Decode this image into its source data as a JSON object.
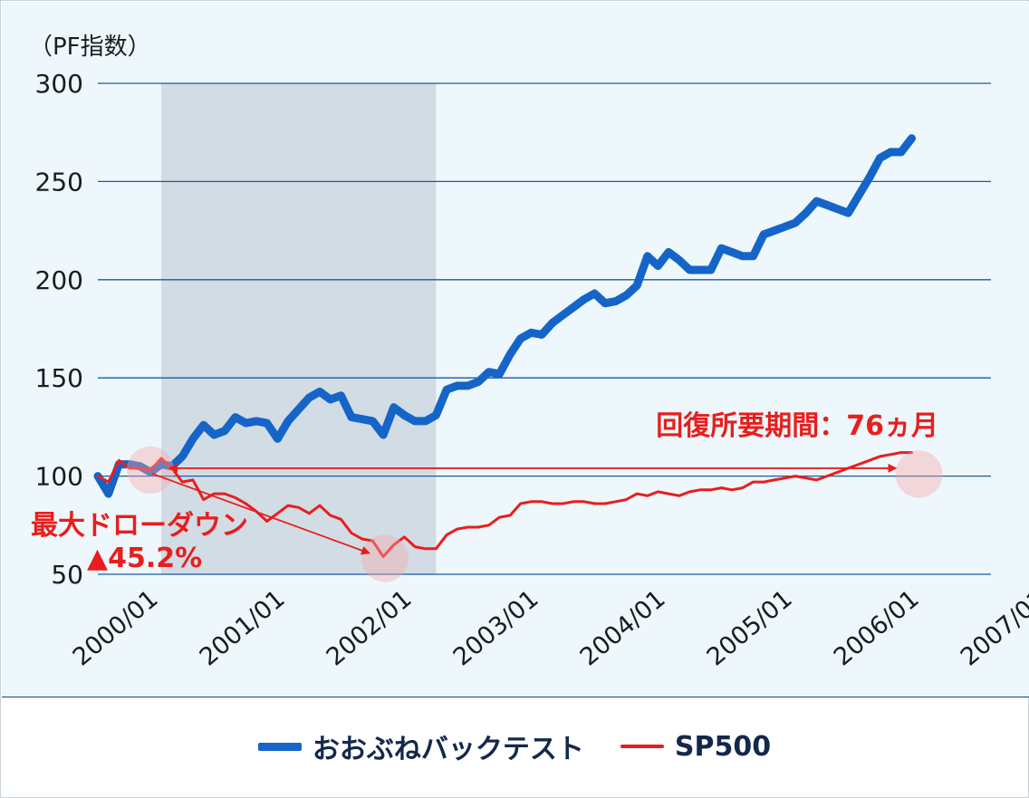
{
  "chart_data": {
    "type": "line",
    "ylabel": "（PF指数）",
    "ylim": [
      50,
      300
    ],
    "yticks": [
      "300",
      "250",
      "200",
      "150",
      "100",
      "50"
    ],
    "xticks": [
      "2000/01",
      "2001/01",
      "2002/01",
      "2003/01",
      "2004/01",
      "2005/01",
      "2006/01",
      "2007/01"
    ],
    "grid": "horizontal",
    "legend_position": "bottom",
    "shaded_period": {
      "start": "2000/07",
      "end": "2002/09"
    },
    "series": [
      {
        "name": "おおぶねバックテスト",
        "color": "#1565c8",
        "points": [
          [
            "2000/01",
            100
          ],
          [
            "2000/02",
            91
          ],
          [
            "2000/03",
            106
          ],
          [
            "2000/04",
            106
          ],
          [
            "2000/05",
            105
          ],
          [
            "2000/06",
            102
          ],
          [
            "2000/07",
            106
          ],
          [
            "2000/08",
            105
          ],
          [
            "2000/09",
            110
          ],
          [
            "2000/10",
            119
          ],
          [
            "2000/11",
            126
          ],
          [
            "2000/12",
            121
          ],
          [
            "2001/01",
            123
          ],
          [
            "2001/02",
            130
          ],
          [
            "2001/03",
            127
          ],
          [
            "2001/04",
            128
          ],
          [
            "2001/05",
            127
          ],
          [
            "2001/06",
            119
          ],
          [
            "2001/07",
            128
          ],
          [
            "2001/08",
            134
          ],
          [
            "2001/09",
            140
          ],
          [
            "2001/10",
            143
          ],
          [
            "2001/11",
            139
          ],
          [
            "2001/12",
            141
          ],
          [
            "2002/01",
            130
          ],
          [
            "2002/02",
            129
          ],
          [
            "2002/03",
            128
          ],
          [
            "2002/04",
            121
          ],
          [
            "2002/05",
            135
          ],
          [
            "2002/06",
            131
          ],
          [
            "2002/07",
            128
          ],
          [
            "2002/08",
            128
          ],
          [
            "2002/09",
            131
          ],
          [
            "2002/10",
            144
          ],
          [
            "2002/11",
            146
          ],
          [
            "2002/12",
            146
          ],
          [
            "2003/01",
            148
          ],
          [
            "2003/02",
            153
          ],
          [
            "2003/03",
            152
          ],
          [
            "2003/04",
            162
          ],
          [
            "2003/05",
            170
          ],
          [
            "2003/06",
            173
          ],
          [
            "2003/07",
            172
          ],
          [
            "2003/08",
            178
          ],
          [
            "2003/09",
            182
          ],
          [
            "2003/10",
            186
          ],
          [
            "2003/11",
            190
          ],
          [
            "2003/12",
            193
          ],
          [
            "2004/01",
            188
          ],
          [
            "2004/02",
            189
          ],
          [
            "2004/03",
            192
          ],
          [
            "2004/04",
            197
          ],
          [
            "2004/05",
            212
          ],
          [
            "2004/06",
            207
          ],
          [
            "2004/07",
            214
          ],
          [
            "2004/08",
            210
          ],
          [
            "2004/09",
            205
          ],
          [
            "2004/10",
            205
          ],
          [
            "2004/11",
            205
          ],
          [
            "2004/12",
            216
          ],
          [
            "2005/01",
            214
          ],
          [
            "2005/02",
            212
          ],
          [
            "2005/03",
            212
          ],
          [
            "2005/04",
            223
          ],
          [
            "2005/05",
            225
          ],
          [
            "2005/06",
            227
          ],
          [
            "2005/07",
            229
          ],
          [
            "2005/08",
            234
          ],
          [
            "2005/09",
            240
          ],
          [
            "2005/10",
            238
          ],
          [
            "2005/11",
            236
          ],
          [
            "2005/12",
            234
          ],
          [
            "2006/01",
            243
          ],
          [
            "2006/02",
            252
          ],
          [
            "2006/03",
            262
          ],
          [
            "2006/04",
            265
          ],
          [
            "2006/05",
            265
          ],
          [
            "2006/06",
            272
          ]
        ]
      },
      {
        "name": "SP500",
        "color": "#e81e1e",
        "points": [
          [
            "2000/01",
            100
          ],
          [
            "2000/02",
            97
          ],
          [
            "2000/03",
            108
          ],
          [
            "2000/04",
            104
          ],
          [
            "2000/05",
            104
          ],
          [
            "2000/06",
            103
          ],
          [
            "2000/07",
            109
          ],
          [
            "2000/08",
            104
          ],
          [
            "2000/09",
            97
          ],
          [
            "2000/10",
            98
          ],
          [
            "2000/11",
            88
          ],
          [
            "2000/12",
            91
          ],
          [
            "2001/01",
            91
          ],
          [
            "2001/02",
            89
          ],
          [
            "2001/03",
            86
          ],
          [
            "2001/04",
            82
          ],
          [
            "2001/05",
            77
          ],
          [
            "2001/06",
            81
          ],
          [
            "2001/07",
            85
          ],
          [
            "2001/08",
            84
          ],
          [
            "2001/09",
            81
          ],
          [
            "2001/10",
            85
          ],
          [
            "2001/11",
            80
          ],
          [
            "2001/12",
            78
          ],
          [
            "2002/01",
            71
          ],
          [
            "2002/02",
            68
          ],
          [
            "2002/03",
            67
          ],
          [
            "2002/04",
            59
          ],
          [
            "2002/05",
            65
          ],
          [
            "2002/06",
            69
          ],
          [
            "2002/07",
            64
          ],
          [
            "2002/08",
            63
          ],
          [
            "2002/09",
            63
          ],
          [
            "2002/10",
            70
          ],
          [
            "2002/11",
            73
          ],
          [
            "2002/12",
            74
          ],
          [
            "2003/01",
            74
          ],
          [
            "2003/02",
            75
          ],
          [
            "2003/03",
            79
          ],
          [
            "2003/04",
            80
          ],
          [
            "2003/05",
            86
          ],
          [
            "2003/06",
            87
          ],
          [
            "2003/07",
            87
          ],
          [
            "2003/08",
            86
          ],
          [
            "2003/09",
            86
          ],
          [
            "2003/10",
            87
          ],
          [
            "2003/11",
            87
          ],
          [
            "2003/12",
            86
          ],
          [
            "2004/01",
            86
          ],
          [
            "2004/02",
            87
          ],
          [
            "2004/03",
            88
          ],
          [
            "2004/04",
            91
          ],
          [
            "2004/05",
            90
          ],
          [
            "2004/06",
            92
          ],
          [
            "2004/07",
            91
          ],
          [
            "2004/08",
            90
          ],
          [
            "2004/09",
            92
          ],
          [
            "2004/10",
            93
          ],
          [
            "2004/11",
            93
          ],
          [
            "2004/12",
            94
          ],
          [
            "2005/01",
            93
          ],
          [
            "2005/02",
            94
          ],
          [
            "2005/03",
            97
          ],
          [
            "2005/04",
            97
          ],
          [
            "2005/05",
            98
          ],
          [
            "2005/06",
            99
          ],
          [
            "2005/07",
            100
          ],
          [
            "2005/08",
            99
          ],
          [
            "2005/09",
            98
          ],
          [
            "2005/10",
            100
          ],
          [
            "2005/11",
            102
          ],
          [
            "2005/12",
            104
          ],
          [
            "2006/01",
            106
          ],
          [
            "2006/02",
            108
          ],
          [
            "2006/03",
            110
          ],
          [
            "2006/04",
            111
          ],
          [
            "2006/05",
            112
          ],
          [
            "2006/06",
            112
          ]
        ]
      }
    ],
    "annotations": {
      "drawdown_label_1": "最大ドローダウン",
      "drawdown_label_2": "▲45.2%",
      "recovery_label": "回復所要期間：76ヵ月"
    }
  },
  "legend": [
    {
      "name": "おおぶねバックテスト",
      "color": "#1565c8"
    },
    {
      "name": "SP500",
      "color": "#e81e1e"
    }
  ]
}
